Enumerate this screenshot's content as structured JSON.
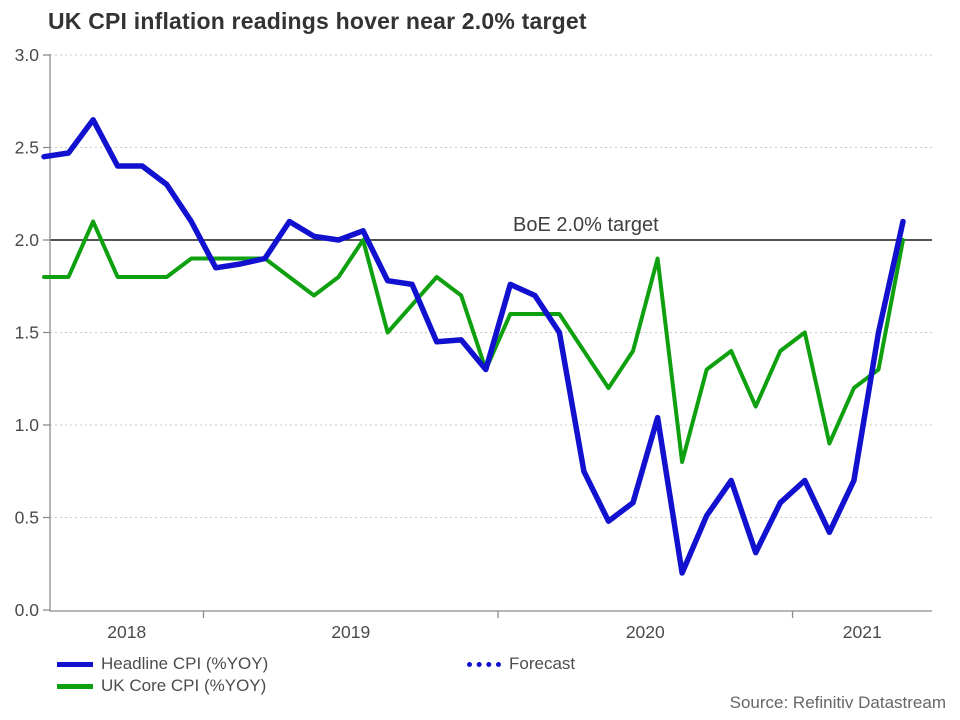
{
  "chart_data": {
    "type": "line",
    "title": "UK CPI inflation readings hover near 2.0% target",
    "xlabel": "",
    "ylabel": "",
    "ylim": [
      0.0,
      3.0
    ],
    "grid": "horizontal-dashed",
    "legend_position": "bottom",
    "y_ticks": [
      0.0,
      0.5,
      1.0,
      1.5,
      2.0,
      2.5,
      3.0
    ],
    "y_tick_labels": [
      "0.0",
      "0.5",
      "1.0",
      "1.5",
      "2.0",
      "2.5",
      "3.0"
    ],
    "x_tick_labels": [
      "2018",
      "2019",
      "2020",
      "2021"
    ],
    "months": [
      "Jun 2018",
      "Jul 2018",
      "Aug 2018",
      "Sep 2018",
      "Oct 2018",
      "Nov 2018",
      "Dec 2018",
      "Jan 2019",
      "Feb 2019",
      "Mar 2019",
      "Apr 2019",
      "May 2019",
      "Jun 2019",
      "Jul 2019",
      "Aug 2019",
      "Sep 2019",
      "Oct 2019",
      "Nov 2019",
      "Dec 2019",
      "Jan 2020",
      "Feb 2020",
      "Mar 2020",
      "Apr 2020",
      "May 2020",
      "Jun 2020",
      "Jul 2020",
      "Aug 2020",
      "Sep 2020",
      "Oct 2020",
      "Nov 2020",
      "Dec 2020",
      "Jan 2021",
      "Feb 2021",
      "Mar 2021",
      "Apr 2021",
      "May 2021"
    ],
    "series": [
      {
        "name": "Headline CPI (%YOY)",
        "color": "#1111cf",
        "stroke_width": 5.5,
        "values": [
          2.45,
          2.47,
          2.65,
          2.4,
          2.4,
          2.3,
          2.1,
          1.85,
          1.87,
          1.9,
          2.1,
          2.02,
          2.0,
          2.05,
          1.78,
          1.76,
          1.45,
          1.46,
          1.3,
          1.76,
          1.7,
          1.5,
          0.75,
          0.48,
          0.58,
          1.04,
          0.2,
          0.51,
          0.7,
          0.31,
          0.58,
          0.7,
          0.42,
          0.7,
          1.5,
          2.1
        ]
      },
      {
        "name": "UK Core CPI (%YOY)",
        "color": "#0fa00f",
        "stroke_width": 4,
        "values": [
          1.8,
          1.8,
          2.1,
          1.8,
          1.8,
          1.8,
          1.9,
          1.9,
          1.9,
          1.9,
          1.8,
          1.7,
          1.8,
          2.0,
          1.5,
          1.65,
          1.8,
          1.7,
          1.3,
          1.6,
          1.6,
          1.6,
          1.4,
          1.2,
          1.4,
          1.9,
          0.8,
          1.3,
          1.4,
          1.1,
          1.4,
          1.5,
          0.9,
          1.2,
          1.3,
          2.0
        ]
      }
    ],
    "target_line": {
      "value": 2.0,
      "label": "BoE 2.0% target",
      "color": "#1a1a1a"
    },
    "legend": [
      {
        "label": "Headline CPI (%YOY)",
        "color": "#1111cf",
        "style": "solid"
      },
      {
        "label": "UK Core CPI (%YOY)",
        "color": "#0fa00f",
        "style": "solid"
      },
      {
        "label": "Forecast",
        "color": "#1111cf",
        "style": "dotted"
      }
    ],
    "source": "Source: Refinitiv Datastream",
    "axis_color": "#8c8c8c",
    "gridline_color": "#c8c8c8",
    "tick_label_color": "#4a4a4a"
  }
}
